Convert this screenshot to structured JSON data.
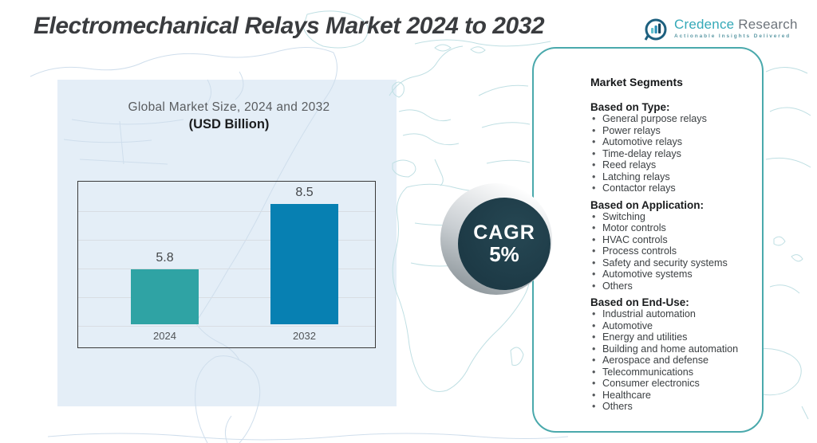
{
  "page_title": "Electromechanical Relays Market 2024 to 2032",
  "logo": {
    "brand_primary": "Credence",
    "brand_secondary": "Research",
    "tagline": "Actionable Insights Delivered"
  },
  "chart_panel": {
    "title": "Global Market Size,  2024 and 2032",
    "subtitle": "(USD Billion)"
  },
  "chart_data": {
    "type": "bar",
    "title": "Global Market Size, 2024 and 2032",
    "units": "USD Billion",
    "categories": [
      "2024",
      "2032"
    ],
    "values": [
      5.8,
      8.5
    ],
    "bar_colors": [
      "#2fa3a4",
      "#0780b2"
    ],
    "ylim": [
      3.5,
      9.5
    ],
    "gridlines": 5,
    "grid": true,
    "legend": "none",
    "xlabel": "",
    "ylabel": ""
  },
  "cagr_badge": {
    "label": "CAGR",
    "value": "5%"
  },
  "segments": {
    "heading": "Market Segments",
    "groups": [
      {
        "heading": "Based on Type:",
        "items": [
          "General purpose relays",
          "Power relays",
          "Automotive relays",
          "Time-delay relays",
          "Reed relays",
          "Latching relays",
          "Contactor relays"
        ]
      },
      {
        "heading": "Based on Application:",
        "items": [
          "Switching",
          "Motor controls",
          "HVAC controls",
          "Process controls",
          "Safety and security systems",
          "Automotive systems",
          "Others"
        ]
      },
      {
        "heading": "Based on End-Use:",
        "items": [
          "Industrial automation",
          "Automotive",
          "Energy and utilities",
          "Building and home automation",
          "Aerospace and defense",
          "Telecommunications",
          "Consumer electronics",
          "Healthcare",
          "Others"
        ]
      }
    ]
  },
  "colors": {
    "accent_teal": "#2fa3a4",
    "accent_blue": "#0780b2",
    "badge_dark": "#1e3b47",
    "panel_border": "#4aa9ac",
    "chart_area_bg": "#e4eef7",
    "map_line_teal": "#bfdfe3",
    "map_line_blue": "#cfdeec"
  }
}
